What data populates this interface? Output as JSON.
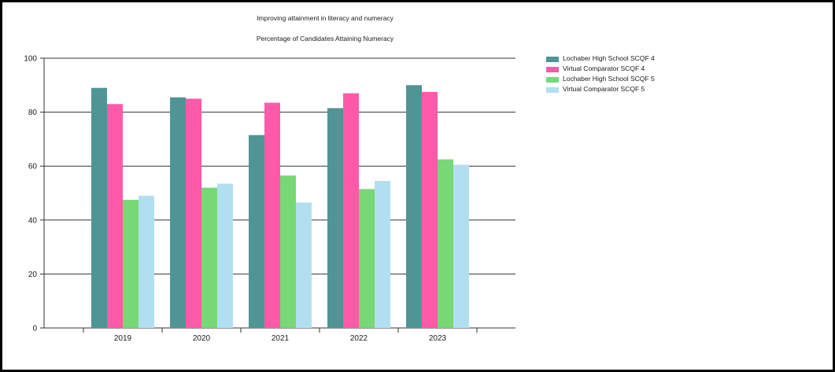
{
  "chart_data": {
    "type": "bar",
    "title": "Improving attainment in literacy and numeracy",
    "subtitle": "Percentage of Candidates Attaining Numeracy",
    "xlabel": "",
    "ylabel": "",
    "categories": [
      "2019",
      "2020",
      "2021",
      "2022",
      "2023"
    ],
    "ylim": [
      0,
      100
    ],
    "yticks": [
      0,
      20,
      40,
      60,
      80,
      100
    ],
    "grid": true,
    "legend_position": "top-right",
    "series": [
      {
        "name": "Lochaber High School SCQF 4",
        "color": "#4f9595",
        "values": [
          89,
          85.5,
          71.5,
          81.5,
          90
        ]
      },
      {
        "name": "Virtual Comparator SCQF 4",
        "color": "#ff5aa9",
        "values": [
          83,
          85,
          83.5,
          87,
          87.5
        ]
      },
      {
        "name": "Lochaber High School SCQF 5",
        "color": "#76d975",
        "values": [
          47.5,
          52,
          56.5,
          51.5,
          62.5
        ]
      },
      {
        "name": "Virtual Comparator SCQF 5",
        "color": "#b2dff0",
        "values": [
          49,
          53.5,
          46.5,
          54.5,
          60.5
        ]
      }
    ]
  }
}
